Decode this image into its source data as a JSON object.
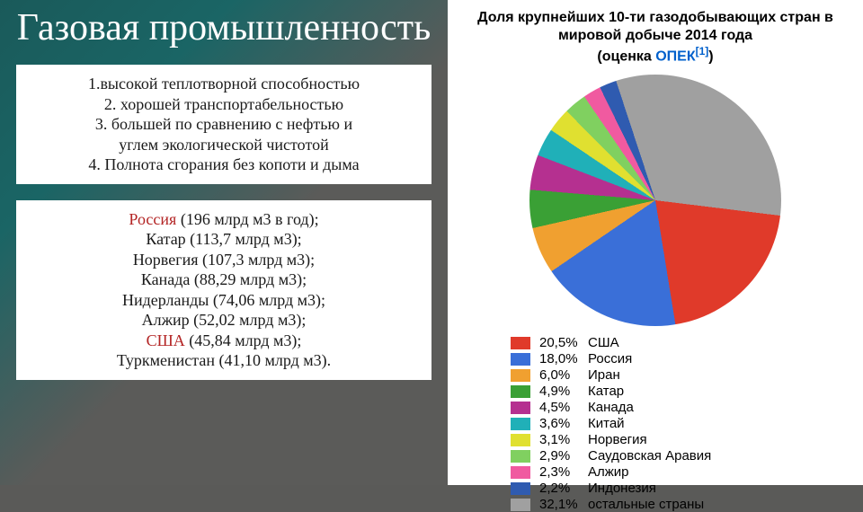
{
  "title": "Газовая промышленность",
  "properties": {
    "p1": "1.высокой теплотворной способностью",
    "p2": "2. хорошей транспортабельностью",
    "p3": "3. большей по сравнению с нефтью и",
    "p3b": "углем экологической чистотой",
    "p4": "4. Полнота сгорания без копоти и дыма"
  },
  "exporters": {
    "e1_country": "Россия",
    "e1_rest": " (196 млрд м3 в год);",
    "e2": "Катар (113,7 млрд м3);",
    "e3": "Норвегия (107,3 млрд м3);",
    "e4": "Канада (88,29 млрд м3);",
    "e5": "Нидерланды (74,06 млрд м3);",
    "e6": "Алжир (52,02 млрд м3);",
    "e7_country": "США",
    "e7_rest": " (45,84 млрд м3);",
    "e8": "Туркменистан (41,10 млрд м3)."
  },
  "chart": {
    "title_a": "Доля крупнейших 10-ти газодобывающих стран в мировой добыче 2014 года",
    "title_b_prefix": "(оценка ",
    "title_b_opec": "ОПЕК",
    "title_b_ref": "[1]",
    "title_b_suffix": ")",
    "type": "pie",
    "background_color": "#ffffff",
    "legend_fontsize": 15,
    "slices": [
      {
        "pct": "20,5%",
        "value": 20.5,
        "label": "США",
        "color": "#e03a2a"
      },
      {
        "pct": "18,0%",
        "value": 18.0,
        "label": "Россия",
        "color": "#3a6fd8"
      },
      {
        "pct": "6,0%",
        "value": 6.0,
        "label": "Иран",
        "color": "#f0a030"
      },
      {
        "pct": "4,9%",
        "value": 4.9,
        "label": "Катар",
        "color": "#3aa035"
      },
      {
        "pct": "4,5%",
        "value": 4.5,
        "label": "Канада",
        "color": "#b53090"
      },
      {
        "pct": "3,6%",
        "value": 3.6,
        "label": "Китай",
        "color": "#20b0b8"
      },
      {
        "pct": "3,1%",
        "value": 3.1,
        "label": "Норвегия",
        "color": "#e0e030"
      },
      {
        "pct": "2,9%",
        "value": 2.9,
        "label": "Саудовская Аравия",
        "color": "#80d060"
      },
      {
        "pct": "2,3%",
        "value": 2.3,
        "label": "Алжир",
        "color": "#f05aa0"
      },
      {
        "pct": "2,2%",
        "value": 2.2,
        "label": "Индонезия",
        "color": "#2f5bb0"
      },
      {
        "pct": "32,1%",
        "value": 32.1,
        "label": "остальные страны",
        "color": "#a0a0a0"
      }
    ],
    "start_angle_deg": 97
  }
}
